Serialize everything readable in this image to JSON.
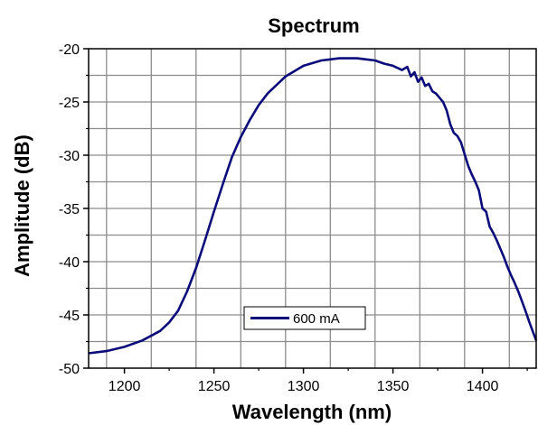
{
  "chart_data": {
    "type": "line",
    "title": "Spectrum",
    "xlabel": "Wavelength (nm)",
    "ylabel": "Amplitude (dB)",
    "xlim": [
      1180,
      1430
    ],
    "ylim": [
      -50,
      -20
    ],
    "xticks": [
      1200,
      1250,
      1300,
      1350,
      1400
    ],
    "yticks": [
      -20,
      -25,
      -30,
      -35,
      -40,
      -45,
      -50
    ],
    "grid": true,
    "legend_position": "bottom-center",
    "series": [
      {
        "name": "600 mA",
        "color": "#0a0a7a",
        "x": [
          1180,
          1190,
          1200,
          1210,
          1220,
          1225,
          1230,
          1235,
          1240,
          1245,
          1250,
          1255,
          1260,
          1265,
          1270,
          1275,
          1280,
          1290,
          1300,
          1310,
          1315,
          1320,
          1325,
          1330,
          1335,
          1340,
          1345,
          1350,
          1355,
          1358,
          1360,
          1362,
          1364,
          1366,
          1368,
          1370,
          1372,
          1374,
          1376,
          1378,
          1380,
          1382,
          1384,
          1386,
          1388,
          1390,
          1392,
          1394,
          1396,
          1398,
          1400,
          1402,
          1404,
          1406,
          1408,
          1410,
          1412,
          1414,
          1416,
          1418,
          1420,
          1422,
          1424,
          1426,
          1428,
          1430
        ],
        "y": [
          -48.6,
          -48.4,
          -48.0,
          -47.4,
          -46.5,
          -45.7,
          -44.6,
          -42.8,
          -40.6,
          -38.0,
          -35.3,
          -32.7,
          -30.2,
          -28.3,
          -26.7,
          -25.3,
          -24.2,
          -22.6,
          -21.6,
          -21.1,
          -21.0,
          -20.9,
          -20.9,
          -20.9,
          -21.0,
          -21.1,
          -21.4,
          -21.6,
          -22.0,
          -21.7,
          -22.6,
          -22.2,
          -23.1,
          -22.7,
          -23.5,
          -23.3,
          -24.0,
          -24.2,
          -24.6,
          -25.0,
          -25.8,
          -27.1,
          -27.9,
          -28.2,
          -28.8,
          -29.9,
          -31.0,
          -31.8,
          -32.5,
          -33.3,
          -35.0,
          -35.3,
          -36.7,
          -37.3,
          -38.0,
          -38.8,
          -39.6,
          -40.5,
          -41.3,
          -42.0,
          -42.8,
          -43.7,
          -44.6,
          -45.6,
          -46.5,
          -47.4
        ]
      }
    ]
  }
}
